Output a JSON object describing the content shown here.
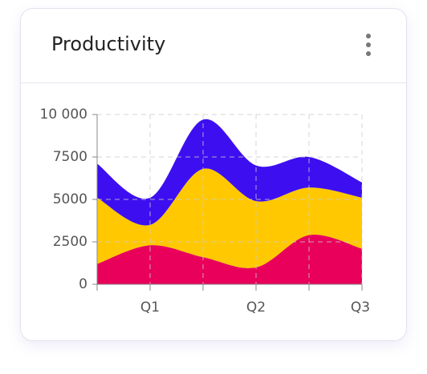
{
  "header": {
    "title": "Productivity"
  },
  "chart_data": {
    "type": "stacked_area",
    "categories": [
      null,
      "Q1",
      null,
      "Q2",
      null,
      "Q3"
    ],
    "series": [
      {
        "color": "#e8005a",
        "values": [
          1200,
          2300,
          1600,
          1000,
          2900,
          2100
        ]
      },
      {
        "color": "#ffc800",
        "values": [
          3900,
          1200,
          5200,
          3900,
          2800,
          3000
        ]
      },
      {
        "color": "#3d0ff0",
        "values": [
          2000,
          1600,
          2900,
          2100,
          1800,
          900
        ]
      }
    ],
    "ylim": [
      0,
      10000
    ],
    "yticks": [
      0,
      2500,
      5000,
      7500,
      {
        "value": 10000,
        "label": "10 000"
      }
    ],
    "grid": true
  }
}
